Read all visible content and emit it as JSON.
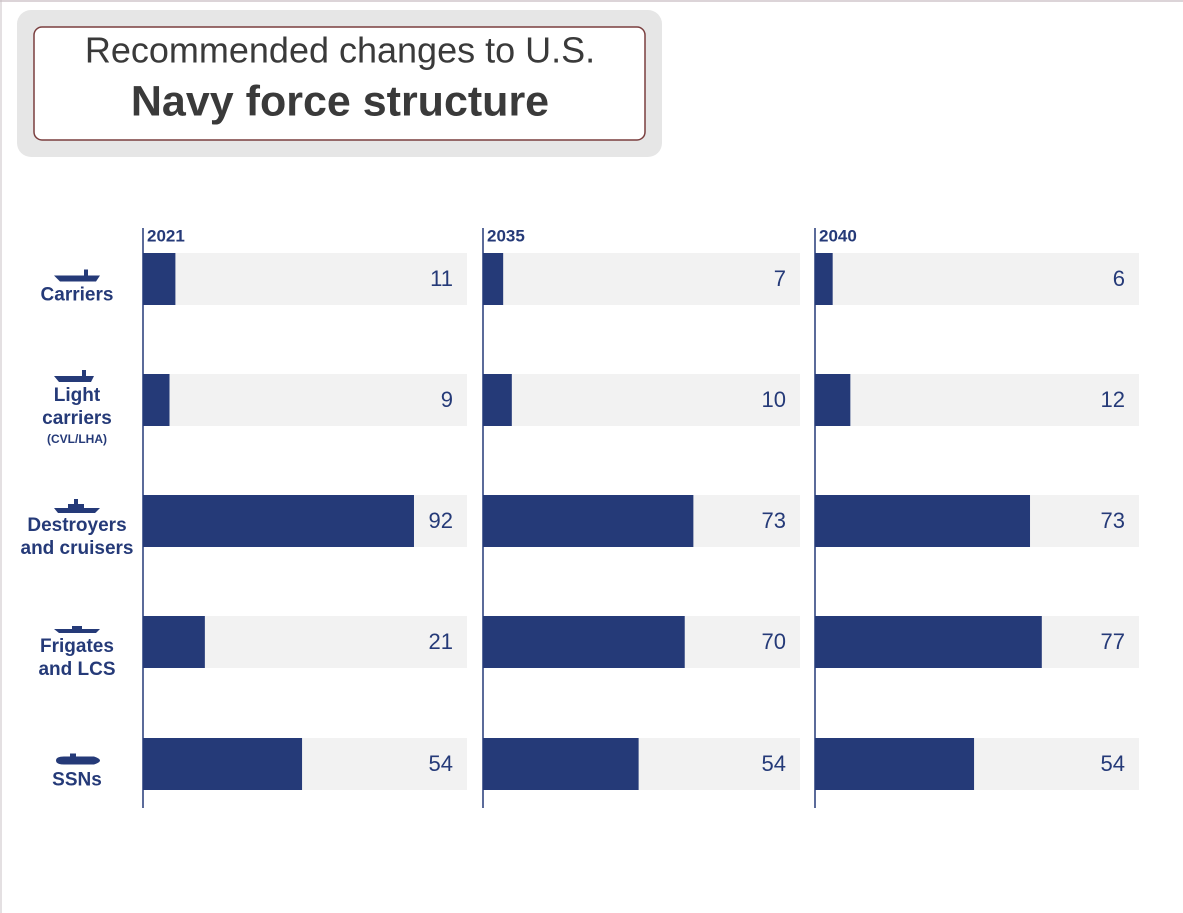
{
  "chart_data": {
    "type": "bar",
    "title": [
      "Recommended changes to U.S.",
      "Navy force structure"
    ],
    "categories": [
      "Carriers",
      "Light\ncarriers",
      "Destroyers\nand cruisers",
      "Frigates\nand LCS",
      "SSNs"
    ],
    "notes": {
      "1": "(CVL/LHA)"
    },
    "xlim": [
      0,
      110
    ],
    "series": [
      {
        "name": "2021",
        "color": "#253a78",
        "values": [
          11,
          9,
          92,
          21,
          54
        ]
      },
      {
        "name": "2035",
        "color": "#253a78",
        "values": [
          7,
          10,
          73,
          70,
          54
        ]
      },
      {
        "name": "2040",
        "color": "#253a78",
        "values": [
          6,
          12,
          73,
          77,
          54
        ]
      }
    ]
  }
}
